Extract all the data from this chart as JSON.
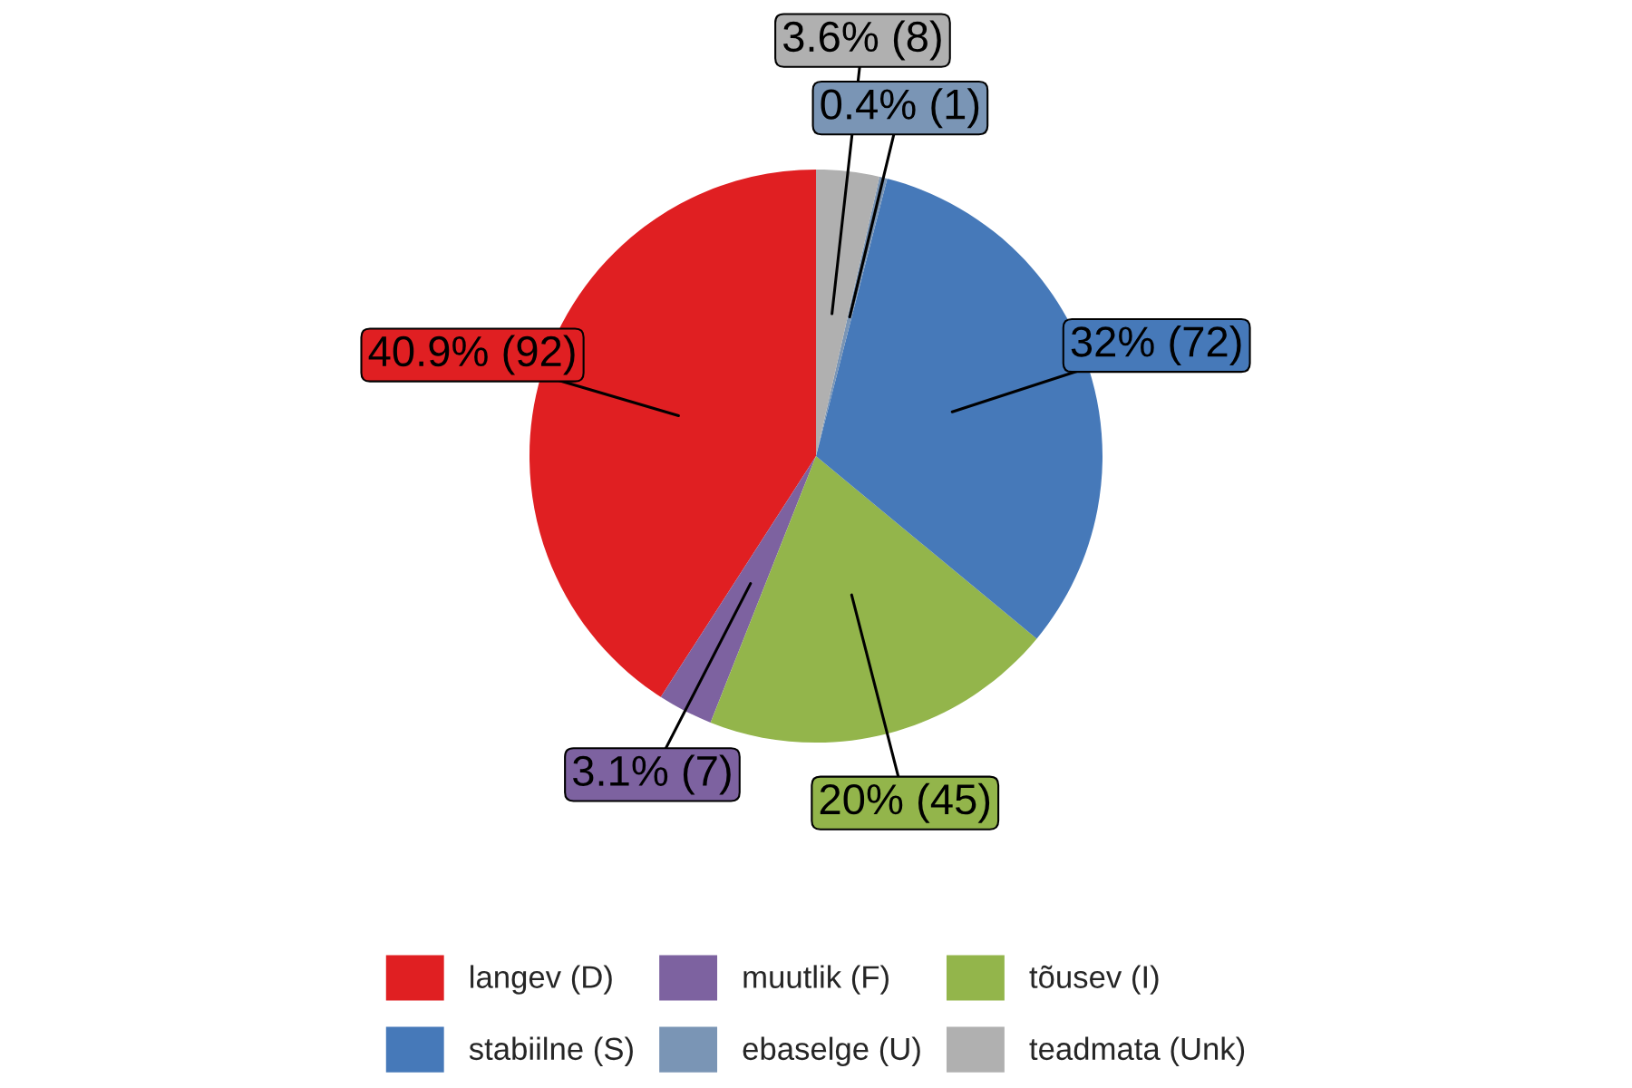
{
  "chart_data": {
    "type": "pie",
    "categories": [
      "langev (D)",
      "muutlik (F)",
      "tõusev (I)",
      "stabiilne (S)",
      "ebaselge (U)",
      "teadmata (Unk)"
    ],
    "values": [
      92,
      7,
      45,
      72,
      1,
      8
    ],
    "colors": [
      "#e01f22",
      "#7d62a0",
      "#93b54b",
      "#4679b9",
      "#7a95b5",
      "#b0b0b0"
    ],
    "value_labels": [
      "40.9% (92)",
      "3.1% (7)",
      "20% (45)",
      "32% (72)",
      "0.4% (1)",
      "3.6% (8)"
    ],
    "legend": "bottom"
  }
}
